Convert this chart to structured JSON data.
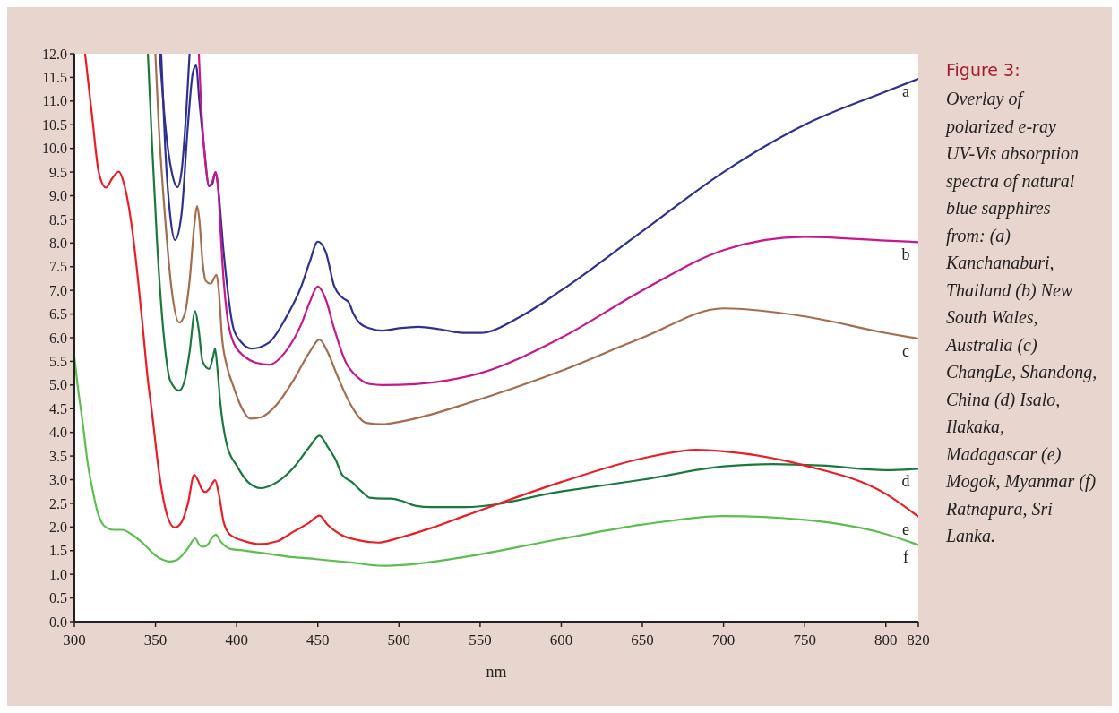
{
  "chart_data": {
    "type": "line",
    "title": "Figure 3:",
    "annotations": [
      "Overlay of polarized e-ray UV-Vis absorption spectra of natural blue sapphires from: (a) Kanchanaburi, Thailand (b) New South Wales, Australia (c) ChangLe, Shandong, China (d) Isalo, Ilakaka, Madagascar (e) Mogok, Myanmar (f) Ratnapura, Sri Lanka."
    ],
    "xlabel": "nm",
    "xlim": [
      300,
      820
    ],
    "xticks": [
      300,
      350,
      400,
      450,
      500,
      550,
      600,
      650,
      700,
      750,
      800,
      820
    ],
    "ylim": [
      0,
      12
    ],
    "yticks": [
      {
        "value": 0,
        "label": "0.0"
      },
      {
        "value": 0.5,
        "label": "0.5"
      },
      {
        "value": 1,
        "label": "1.0"
      },
      {
        "value": 1.5,
        "label": "1.5"
      },
      {
        "value": 2,
        "label": "2.0"
      },
      {
        "value": 2.5,
        "label": "2.5"
      },
      {
        "value": 3,
        "label": "3.0"
      },
      {
        "value": 3.5,
        "label": "3.5"
      },
      {
        "value": 4,
        "label": "4.0"
      },
      {
        "value": 4.5,
        "label": "4.5"
      },
      {
        "value": 5,
        "label": "5.0"
      },
      {
        "value": 5.5,
        "label": "5.5"
      },
      {
        "value": 6,
        "label": "6.0"
      },
      {
        "value": 6.5,
        "label": "6.5"
      },
      {
        "value": 7,
        "label": "7.0"
      },
      {
        "value": 7.5,
        "label": "7.5"
      },
      {
        "value": 8,
        "label": "8.0"
      },
      {
        "value": 8.5,
        "label": "8.5"
      },
      {
        "value": 9,
        "label": "9.0"
      },
      {
        "value": 9.5,
        "label": "9.5"
      },
      {
        "value": 10,
        "label": "10.0"
      },
      {
        "value": 10.5,
        "label": "10.5"
      },
      {
        "value": 11,
        "label": "11.0"
      },
      {
        "value": 11.5,
        "label": "11.5"
      },
      {
        "value": 12,
        "label": "12.0"
      }
    ],
    "series": [
      {
        "name": "a",
        "color": "#2e3192",
        "x": [
          353.5,
          356,
          359,
          362,
          366,
          370,
          373,
          375,
          377,
          380,
          383,
          385,
          387,
          388.5,
          392,
          398,
          403,
          409,
          420,
          430,
          440,
          445,
          450,
          455,
          460,
          465,
          469,
          472,
          476,
          482,
          490,
          500,
          512,
          525,
          540,
          550,
          575,
          600,
          650,
          700,
          750,
          800,
          820
        ],
        "values": [
          12,
          10,
          8.6,
          8.06,
          8.6,
          10.5,
          11.6,
          11.75,
          11,
          10,
          9.2,
          9.25,
          9.5,
          9.2,
          7.8,
          6.2,
          5.9,
          5.77,
          5.9,
          6.4,
          7.1,
          7.6,
          8.03,
          7.8,
          7.1,
          6.85,
          6.75,
          6.5,
          6.3,
          6.2,
          6.15,
          6.2,
          6.23,
          6.18,
          6.1,
          6.1,
          6.45,
          7.0,
          8.25,
          9.5,
          10.5,
          11.2,
          11.47
        ]
      },
      {
        "color": "#2e3192",
        "x": [
          352.6,
          356,
          360,
          363.5,
          366,
          369,
          371
        ],
        "values": [
          12,
          10.5,
          9.5,
          9.18,
          9.5,
          10.8,
          12
        ]
      },
      {
        "name": "b",
        "color": "#c8178f",
        "x": [
          376.7,
          378,
          379.3,
          381,
          383,
          385,
          387,
          388.5,
          390,
          392,
          394,
          398,
          405,
          412,
          420,
          430,
          440,
          445,
          450,
          455,
          460,
          467,
          475,
          482,
          490,
          510,
          530,
          550,
          600,
          650,
          700,
          750,
          800,
          820
        ],
        "values": [
          12,
          11,
          10.3,
          9.6,
          9.22,
          9.3,
          9.5,
          9.2,
          8.3,
          7.2,
          6.5,
          5.9,
          5.6,
          5.47,
          5.43,
          5.7,
          6.3,
          6.75,
          7.08,
          6.8,
          6.2,
          5.5,
          5.15,
          5.02,
          5.0,
          5.02,
          5.1,
          5.25,
          6.0,
          7.0,
          7.85,
          8.13,
          8.05,
          8.02
        ]
      },
      {
        "name": "c",
        "color": "#a56d4e",
        "x": [
          349.9,
          352,
          356,
          360,
          364.6,
          368,
          371,
          374,
          375.6,
          377,
          379,
          381,
          383.9,
          387.6,
          389,
          391,
          394,
          397.7,
          402,
          408.7,
          415,
          425,
          435,
          445,
          451,
          456,
          462,
          470,
          480,
          490,
          500,
          520,
          541,
          600,
          650,
          700,
          750,
          800,
          820
        ],
        "values": [
          12,
          10.5,
          8.5,
          7.0,
          6.32,
          6.5,
          7.2,
          8.4,
          8.78,
          8.5,
          7.6,
          7.2,
          7.14,
          7.33,
          7.0,
          6.0,
          5.4,
          5.0,
          4.6,
          4.29,
          4.32,
          4.6,
          5.1,
          5.7,
          5.96,
          5.7,
          5.2,
          4.6,
          4.2,
          4.17,
          4.22,
          4.38,
          4.6,
          5.3,
          6.0,
          6.62,
          6.45,
          6.1,
          5.98
        ]
      },
      {
        "name": "d",
        "color": "#1a7a3e",
        "x": [
          345.3,
          348,
          351,
          355.4,
          359,
          364.6,
          368,
          371,
          374.4,
          376.5,
          379,
          383,
          385.5,
          386.7,
          388,
          390,
          394,
          400,
          407,
          415,
          425,
          435,
          445,
          451,
          456,
          461,
          465,
          471,
          477,
          482,
          490,
          495,
          502,
          510,
          520,
          541,
          600,
          650,
          700,
          730,
          760,
          800,
          820
        ],
        "values": [
          12,
          10,
          8,
          5.94,
          5.1,
          4.88,
          5.1,
          5.7,
          6.56,
          6.2,
          5.5,
          5.34,
          5.6,
          5.77,
          5.4,
          4.6,
          3.73,
          3.3,
          2.95,
          2.82,
          2.95,
          3.25,
          3.7,
          3.93,
          3.7,
          3.42,
          3.1,
          2.95,
          2.75,
          2.62,
          2.6,
          2.6,
          2.55,
          2.45,
          2.42,
          2.42,
          2.75,
          3.0,
          3.28,
          3.33,
          3.3,
          3.2,
          3.23
        ]
      },
      {
        "name": "e",
        "color": "#ed1c24",
        "x": [
          306.6,
          311.2,
          315,
          319.5,
          323,
          327.4,
          331,
          335.2,
          339,
          342.5,
          345,
          348,
          352,
          356,
          361.8,
          366,
          370,
          373.8,
          376,
          378.5,
          380.8,
          383,
          386.7,
          389,
          392,
          395.9,
          405,
          414.3,
          425,
          435,
          445,
          451,
          456,
          464,
          475,
          487,
          500,
          520,
          541,
          600,
          650,
          683,
          700,
          750,
          800,
          820
        ],
        "values": [
          12,
          10.6,
          9.5,
          9.17,
          9.35,
          9.51,
          9.2,
          8.4,
          7.3,
          6.1,
          5.2,
          4.37,
          3.2,
          2.4,
          1.99,
          2.1,
          2.5,
          3.1,
          3.0,
          2.8,
          2.74,
          2.8,
          2.99,
          2.7,
          2.1,
          1.84,
          1.7,
          1.64,
          1.7,
          1.9,
          2.1,
          2.24,
          2.05,
          1.84,
          1.72,
          1.67,
          1.77,
          1.98,
          2.24,
          2.95,
          3.45,
          3.63,
          3.6,
          3.3,
          2.7,
          2.22
        ]
      },
      {
        "name": "f",
        "color": "#5bbf4f",
        "x": [
          300,
          302,
          305.7,
          308,
          311.2,
          314,
          316.7,
          320,
          324,
          329.6,
          335,
          342.5,
          350,
          355,
          359,
          363,
          366.4,
          370,
          374.4,
          377,
          379.3,
          382,
          385,
          387.2,
          390,
          395.9,
          405,
          416,
          430,
          449,
          470,
          490,
          510,
          541,
          600,
          650,
          700,
          750,
          800,
          820
        ],
        "values": [
          5.6,
          5.0,
          4.05,
          3.4,
          2.79,
          2.35,
          2.1,
          1.98,
          1.94,
          1.94,
          1.85,
          1.65,
          1.4,
          1.3,
          1.27,
          1.3,
          1.4,
          1.55,
          1.76,
          1.62,
          1.58,
          1.62,
          1.78,
          1.84,
          1.7,
          1.54,
          1.5,
          1.45,
          1.38,
          1.32,
          1.25,
          1.18,
          1.22,
          1.37,
          1.75,
          2.05,
          2.23,
          2.15,
          1.85,
          1.62
        ]
      }
    ]
  }
}
